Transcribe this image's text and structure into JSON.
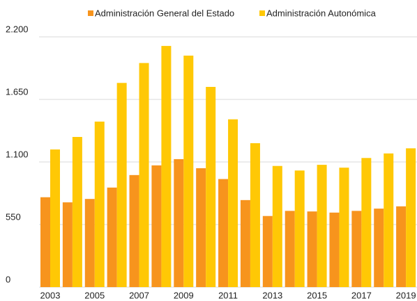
{
  "chart_data": {
    "type": "bar",
    "categories": [
      "2003",
      null,
      "2005",
      null,
      "2007",
      null,
      "2009",
      null,
      "2011",
      null,
      "2013",
      null,
      "2015",
      null,
      "2017",
      null,
      "2019"
    ],
    "series": [
      {
        "name": "Administración General del Estado",
        "color": "#f7941d",
        "values": [
          790,
          745,
          775,
          875,
          985,
          1070,
          1125,
          1045,
          950,
          765,
          625,
          670,
          665,
          655,
          670,
          690,
          710
        ]
      },
      {
        "name": "Administración Autonómica",
        "color": "#ffc805",
        "values": [
          1210,
          1320,
          1455,
          1795,
          1970,
          2120,
          2035,
          1760,
          1475,
          1265,
          1065,
          1025,
          1075,
          1050,
          1135,
          1175,
          1220
        ]
      }
    ],
    "ylim": [
      0,
      2200
    ],
    "yticks": [
      0,
      550,
      {
        "value": 1100,
        "label": "1.100"
      },
      {
        "value": 1650,
        "label": "1.650"
      },
      {
        "value": 2200,
        "label": "2.200"
      }
    ],
    "grid": true,
    "legend": "top"
  }
}
